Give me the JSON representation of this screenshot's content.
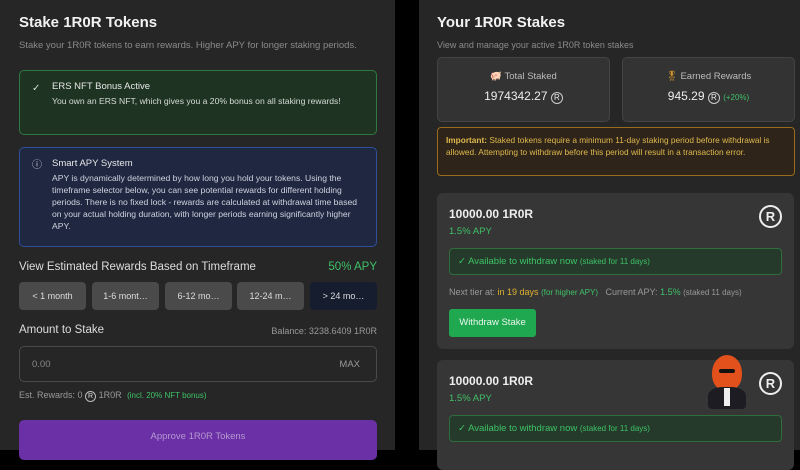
{
  "left": {
    "title": "Stake 1R0R Tokens",
    "subtitle": "Stake your 1R0R tokens to earn rewards. Higher APY for longer staking periods.",
    "nft_notice": {
      "icon": "check-circle-icon",
      "title": "ERS NFT Bonus Active",
      "text": "You own an ERS NFT, which gives you a 20% bonus on all staking rewards!"
    },
    "apy_notice": {
      "icon": "info-icon",
      "title": "Smart APY System",
      "text": "APY is dynamically determined by how long you hold your tokens. Using the timeframe selector below, you can see potential rewards for different holding periods. There is no fixed lock - rewards are calculated at withdrawal time based on your actual holding duration, with longer periods earning significantly higher APY."
    },
    "timeframe_label": "View Estimated Rewards Based on Timeframe",
    "apy": "50% APY",
    "timeframes": [
      "< 1 month",
      "1-6 mont…",
      "6-12 mo…",
      "12-24 m…",
      "> 24 mo…"
    ],
    "selected_timeframe": "> 24 mo…",
    "amount_label": "Amount to Stake",
    "balance": "Balance: 3238.6409 1R0R",
    "amount_placeholder": "0.00",
    "max_label": "MAX",
    "est_rewards_prefix": "Est. Rewards: 0",
    "est_rewards_unit": "1R0R",
    "est_rewards_note": "(incl. 20% NFT bonus)",
    "approve_label": "Approve 1R0R Tokens"
  },
  "right": {
    "title": "Your 1R0R Stakes",
    "subtitle": "View and manage your active 1R0R token stakes",
    "total_staked": {
      "icon": "piggy-bank-icon",
      "label": "Total Staked",
      "value": "1974342.27"
    },
    "earned": {
      "icon": "award-icon",
      "label": "Earned Rewards",
      "value": "945.29",
      "bonus": "(+20%)"
    },
    "warning": {
      "bold": "Important:",
      "text": " Staked tokens require a minimum 11-day staking period before withdrawal is allowed. Attempting to withdraw before this period will result in a transaction error."
    },
    "stakes": [
      {
        "amount": "10000.00 1R0R",
        "apy": "1.5% APY",
        "status": "Available to withdraw now",
        "status_note": "(staked for 11 days)",
        "next_tier_label": "Next tier at:",
        "next_tier_value": "in 19 days",
        "next_tier_note": "(for higher APY)",
        "current_apy_label": "Current APY:",
        "current_apy_value": "1.5%",
        "current_apy_note": "(staked 11 days)",
        "withdraw_label": "Withdraw Stake"
      },
      {
        "amount": "10000.00 1R0R",
        "apy": "1.5% APY",
        "status": "Available to withdraw now",
        "status_note": "(staked for 11 days)"
      }
    ]
  },
  "colors": {
    "accent_green": "#3ec267",
    "button_green": "#1fa84f",
    "purple": "#6b2fa6",
    "warning_text": "#e6b84a"
  }
}
